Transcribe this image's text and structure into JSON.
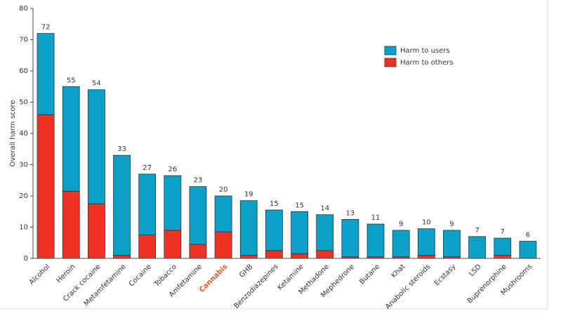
{
  "chart_data": {
    "type": "stacked-bar",
    "ylabel": "Overall harm score",
    "categories": [
      "Alcohol",
      "Heroin",
      "Crack cocaine",
      "Metamfetamine",
      "Cocaine",
      "Tobacco",
      "Amfetamine",
      "Cannabis",
      "GHB",
      "Benzodiazepines",
      "Ketamine",
      "Methadone",
      "Mephedrone",
      "Butane",
      "Khat",
      "Anabolic steroids",
      "Ecstasy",
      "LSD",
      "Buprenorphine",
      "Mushrooms"
    ],
    "series": [
      {
        "name": "Harm to others",
        "color": "#ee3224",
        "values": [
          46,
          21.5,
          17.5,
          1,
          7.5,
          9,
          4.5,
          8.5,
          1,
          2.5,
          1.5,
          2.5,
          0.5,
          0.5,
          0.5,
          1,
          0.5,
          0,
          1,
          0
        ]
      },
      {
        "name": "Harm to users",
        "color": "#0aa0c8",
        "values": [
          26,
          33.5,
          36.5,
          32,
          19.5,
          17.5,
          18.5,
          11.5,
          17.5,
          13,
          13.5,
          11.5,
          12,
          10.5,
          8.5,
          8.5,
          8.5,
          7,
          5.5,
          5.5
        ]
      }
    ],
    "totals": [
      72,
      55,
      54,
      33,
      27,
      26,
      23,
      20,
      19,
      15,
      15,
      14,
      13,
      11,
      9,
      10,
      9,
      7,
      7,
      6
    ],
    "highlight": "Cannabis",
    "highlight_color": "#e8561c",
    "ylim": [
      0,
      80
    ],
    "yticks": [
      0,
      10,
      20,
      30,
      40,
      50,
      60,
      70,
      80
    ],
    "legend": "upper right"
  }
}
